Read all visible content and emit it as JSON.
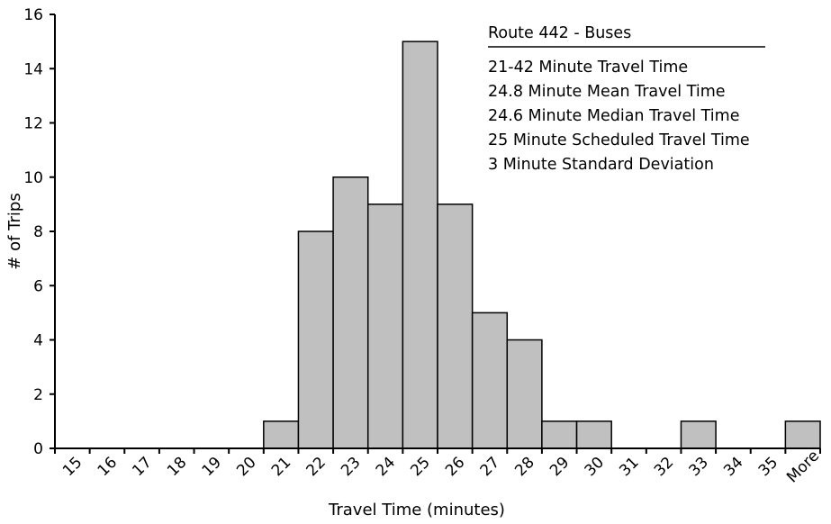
{
  "chart_data": {
    "type": "bar",
    "categories": [
      "15",
      "16",
      "17",
      "18",
      "19",
      "20",
      "21",
      "22",
      "23",
      "24",
      "25",
      "26",
      "27",
      "28",
      "29",
      "30",
      "31",
      "32",
      "33",
      "34",
      "35",
      "More"
    ],
    "values": [
      0,
      0,
      0,
      0,
      0,
      0,
      1,
      8,
      10,
      9,
      15,
      9,
      5,
      4,
      1,
      1,
      0,
      0,
      1,
      0,
      0,
      1
    ],
    "xlabel": "Travel Time (minutes)",
    "ylabel": "# of Trips",
    "ylim": [
      0,
      16
    ],
    "yticks": [
      0,
      2,
      4,
      6,
      8,
      10,
      12,
      14,
      16
    ],
    "grid": false,
    "legend": "none",
    "bar_color": "#c0c0c0",
    "annotation": {
      "title": "Route 442 - Buses",
      "lines": [
        "21-42 Minute Travel Time",
        "24.8 Minute Mean Travel Time",
        "24.6 Minute Median Travel Time",
        "25 Minute Scheduled Travel Time",
        "3 Minute Standard Deviation"
      ]
    }
  }
}
